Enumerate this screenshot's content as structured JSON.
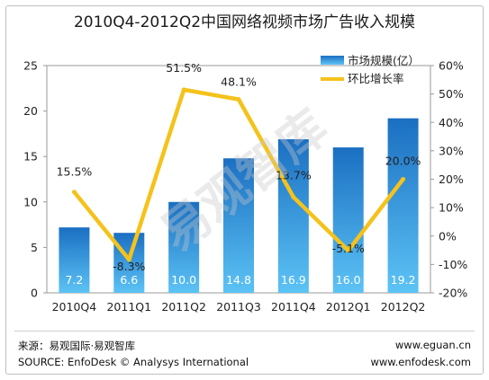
{
  "chart_data": {
    "type": "bar+line",
    "title": "2010Q4-2012Q2中国网络视频市场广告收入规模",
    "categories": [
      "2010Q4",
      "2011Q1",
      "2011Q2",
      "2011Q3",
      "2011Q4",
      "2012Q1",
      "2012Q2"
    ],
    "series": [
      {
        "name": "市场规模(亿）",
        "kind": "bar",
        "axis": "left",
        "values": [
          7.2,
          6.6,
          10.0,
          14.8,
          16.9,
          16.0,
          19.2
        ],
        "labels": [
          "7.2",
          "6.6",
          "10.0",
          "14.8",
          "16.9",
          "16.0",
          "19.2"
        ]
      },
      {
        "name": "环比增长率",
        "kind": "line",
        "axis": "right",
        "values": [
          15.5,
          -8.3,
          51.5,
          48.1,
          13.7,
          -5.1,
          20.0
        ],
        "labels": [
          "15.5%",
          "-8.3%",
          "51.5%",
          "48.1%",
          "13.7%",
          "-5.1%",
          "20.0%"
        ]
      }
    ],
    "left_axis": {
      "min": 0,
      "max": 25,
      "ticks": [
        "0",
        "5",
        "10",
        "15",
        "20",
        "25"
      ]
    },
    "right_axis": {
      "min": -20,
      "max": 60,
      "ticks": [
        "-20%",
        "-10%",
        "0%",
        "10%",
        "20%",
        "30%",
        "40%",
        "50%",
        "60%"
      ]
    },
    "legend_position": "top-right",
    "colors": {
      "bar_top": "#1b6fc2",
      "bar_bottom": "#5cc3f5",
      "line": "#f5c21b"
    },
    "watermark": "易观智库"
  },
  "footer": {
    "source_cn": "来源：易观国际·易观智库",
    "source_en": "SOURCE: EnfoDesk © Analysys International",
    "url1": "www.eguan.cn",
    "url2": "www.enfodesk.com"
  }
}
